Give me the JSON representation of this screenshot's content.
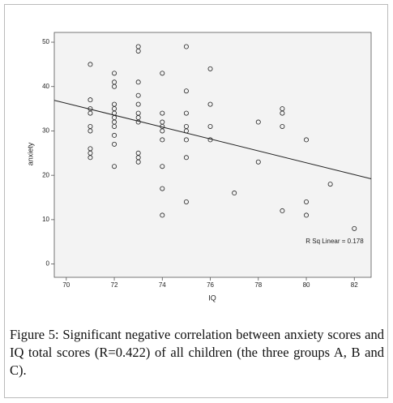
{
  "chart_data": {
    "type": "scatter",
    "x_label": "IQ",
    "y_label": "anxiety",
    "xlim": [
      69.5,
      82.7
    ],
    "ylim": [
      -3,
      52.2
    ],
    "xticks": [
      70,
      72,
      74,
      76,
      78,
      80,
      82
    ],
    "yticks": [
      0,
      10,
      20,
      30,
      40,
      50
    ],
    "x": [
      71,
      71,
      71,
      71,
      71,
      71,
      71,
      71,
      71,
      72,
      72,
      72,
      72,
      72,
      72,
      72,
      72,
      72,
      72,
      72,
      72,
      73,
      73,
      73,
      73,
      73,
      73,
      73,
      73,
      73,
      73,
      73,
      74,
      74,
      74,
      74,
      74,
      74,
      74,
      74,
      74,
      75,
      75,
      75,
      75,
      75,
      75,
      75,
      75,
      76,
      76,
      76,
      76,
      77,
      78,
      78,
      79,
      79,
      79,
      79,
      80,
      80,
      80,
      81,
      82
    ],
    "values": [
      45,
      37,
      35,
      34,
      31,
      30,
      26,
      25,
      24,
      43,
      41,
      40,
      36,
      35,
      34,
      33,
      32,
      31,
      29,
      27,
      22,
      49,
      48,
      41,
      38,
      36,
      34,
      33,
      32,
      25,
      24,
      23,
      43,
      34,
      32,
      31,
      30,
      28,
      22,
      17,
      11,
      49,
      39,
      34,
      31,
      30,
      28,
      24,
      14,
      44,
      36,
      31,
      28,
      16,
      32,
      23,
      35,
      34,
      31,
      12,
      28,
      14,
      11,
      18,
      8
    ],
    "fit_line": {
      "x": [
        69.5,
        82.7
      ],
      "y": [
        36.9,
        19.2
      ]
    },
    "annotation": "R Sq Linear = 0.178"
  },
  "caption": "Figure 5: Significant negative correlation between anxiety scores and IQ total scores (R=0.422) of all children (the three groups A, B and C)."
}
